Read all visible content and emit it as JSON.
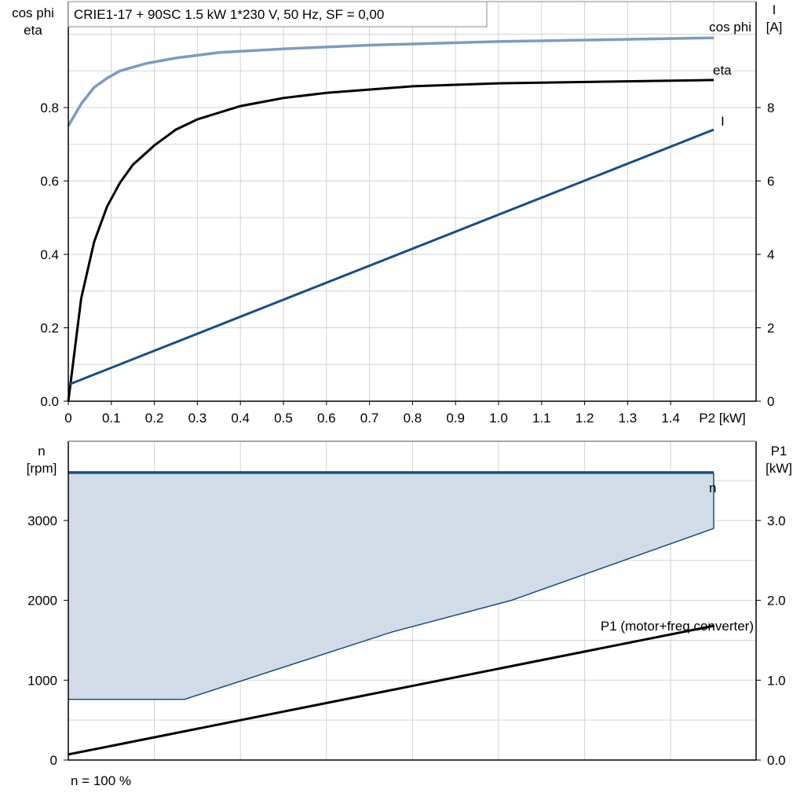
{
  "colors": {
    "cos_phi": "#7a9cc0",
    "current": "#174f86",
    "eta": "#000000",
    "n": "#174f86",
    "n_fill": "#d0dce8",
    "p1": "#000000",
    "grid": "#d3d3d3"
  },
  "chart_data": [
    {
      "type": "line",
      "title": "CRIE1-17 + 90SC   1.5 kW   1*230 V, 50 Hz, SF = 0,00",
      "xlabel": "P2 [kW]",
      "ylabel_left": [
        "cos phi",
        "eta"
      ],
      "ylabel_right": [
        "I",
        "[A]"
      ],
      "xlim": [
        0,
        1.6
      ],
      "ylim_left": [
        0,
        1.09
      ],
      "ylim_right": [
        0,
        10.9
      ],
      "x_ticks": [
        "0",
        "0.1",
        "0.2",
        "0.3",
        "0.4",
        "0.5",
        "0.6",
        "0.7",
        "0.8",
        "0.9",
        "1.0",
        "1.1",
        "1.2",
        "1.3",
        "1.4"
      ],
      "y_ticks_left": [
        "0.0",
        "0.2",
        "0.4",
        "0.6",
        "0.8"
      ],
      "y_ticks_right": [
        "0",
        "2",
        "4",
        "6",
        "8"
      ],
      "grid": true,
      "series": [
        {
          "name": "cos phi",
          "axis": "left",
          "x": [
            0,
            0.03,
            0.06,
            0.09,
            0.12,
            0.18,
            0.25,
            0.35,
            0.5,
            0.7,
            1.0,
            1.5
          ],
          "y": [
            0.75,
            0.81,
            0.855,
            0.88,
            0.9,
            0.92,
            0.935,
            0.95,
            0.96,
            0.97,
            0.98,
            0.99
          ]
        },
        {
          "name": "eta",
          "axis": "left",
          "x": [
            0,
            0.03,
            0.06,
            0.09,
            0.12,
            0.15,
            0.2,
            0.25,
            0.3,
            0.4,
            0.5,
            0.6,
            0.8,
            1.0,
            1.5
          ],
          "y": [
            0.0,
            0.28,
            0.434,
            0.53,
            0.595,
            0.644,
            0.697,
            0.74,
            0.768,
            0.804,
            0.826,
            0.84,
            0.858,
            0.866,
            0.875
          ]
        },
        {
          "name": "I",
          "axis": "right",
          "x": [
            0,
            1.5
          ],
          "y": [
            0.45,
            7.4
          ]
        }
      ]
    },
    {
      "type": "area",
      "xlim": [
        0,
        1.6
      ],
      "ylabel_left": [
        "n",
        "[rpm]"
      ],
      "ylabel_right": [
        "P1",
        "[kW]"
      ],
      "ylim_left": [
        0,
        3990
      ],
      "ylim_right": [
        0,
        3.99
      ],
      "y_ticks_left": [
        "0",
        "1000",
        "2000",
        "3000"
      ],
      "y_ticks_right": [
        "0.0",
        "1.0",
        "2.0",
        "3.0"
      ],
      "grid": true,
      "footnote": "n = 100 %",
      "series": [
        {
          "name": "n",
          "axis": "left",
          "x": [
            0,
            1.5
          ],
          "y": [
            3600,
            3600
          ]
        },
        {
          "name": "n-min",
          "axis": "left",
          "x": [
            0,
            0.27,
            0.75,
            1.03,
            1.5
          ],
          "y": [
            760,
            760,
            1600,
            2000,
            2900
          ]
        },
        {
          "name": "P1 (motor+freq.converter)",
          "axis": "right",
          "x": [
            0,
            1.5
          ],
          "y": [
            0.07,
            1.68
          ]
        }
      ]
    }
  ]
}
